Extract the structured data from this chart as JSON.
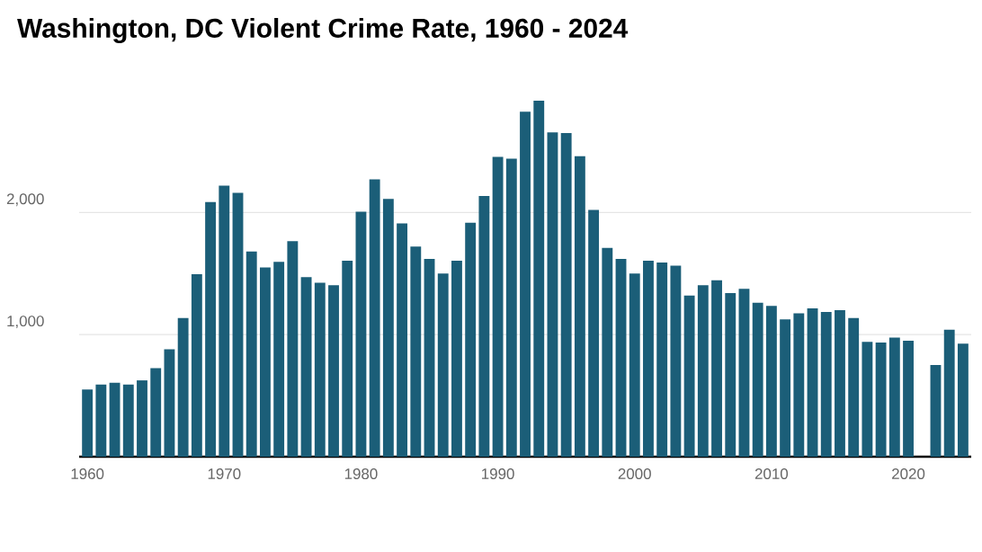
{
  "chart_data": {
    "type": "bar",
    "title": "Washington, DC Violent Crime Rate, 1960 - 2024",
    "x": [
      1960,
      1961,
      1962,
      1963,
      1964,
      1965,
      1966,
      1967,
      1968,
      1969,
      1970,
      1971,
      1972,
      1973,
      1974,
      1975,
      1976,
      1977,
      1978,
      1979,
      1980,
      1981,
      1982,
      1983,
      1984,
      1985,
      1986,
      1987,
      1988,
      1989,
      1990,
      1991,
      1992,
      1993,
      1994,
      1995,
      1996,
      1997,
      1998,
      1999,
      2000,
      2001,
      2002,
      2003,
      2004,
      2005,
      2006,
      2007,
      2008,
      2009,
      2010,
      2011,
      2012,
      2013,
      2014,
      2015,
      2016,
      2017,
      2018,
      2019,
      2020,
      2021,
      2022,
      2023,
      2024
    ],
    "values": [
      550,
      590,
      605,
      590,
      625,
      725,
      880,
      1135,
      1495,
      2085,
      2220,
      2160,
      1680,
      1550,
      1595,
      1765,
      1470,
      1425,
      1405,
      1605,
      2005,
      2270,
      2110,
      1910,
      1720,
      1620,
      1500,
      1605,
      1915,
      2135,
      2455,
      2440,
      2825,
      2915,
      2655,
      2650,
      2460,
      2020,
      1710,
      1620,
      1500,
      1605,
      1590,
      1565,
      1320,
      1405,
      1445,
      1340,
      1375,
      1260,
      1235,
      1125,
      1175,
      1215,
      1185,
      1200,
      1135,
      940,
      935,
      975,
      950,
      null,
      750,
      1040,
      925
    ],
    "color": "#1b5e78",
    "xlim": [
      1959.4,
      2024.6
    ],
    "xticks": [
      1960,
      1970,
      1980,
      1990,
      2000,
      2010,
      2020
    ],
    "ylim": [
      0,
      2915
    ],
    "yticks": [
      {
        "value": 1000,
        "label": "1,000"
      },
      {
        "value": 2000,
        "label": "2,000"
      }
    ],
    "grid": "y"
  }
}
